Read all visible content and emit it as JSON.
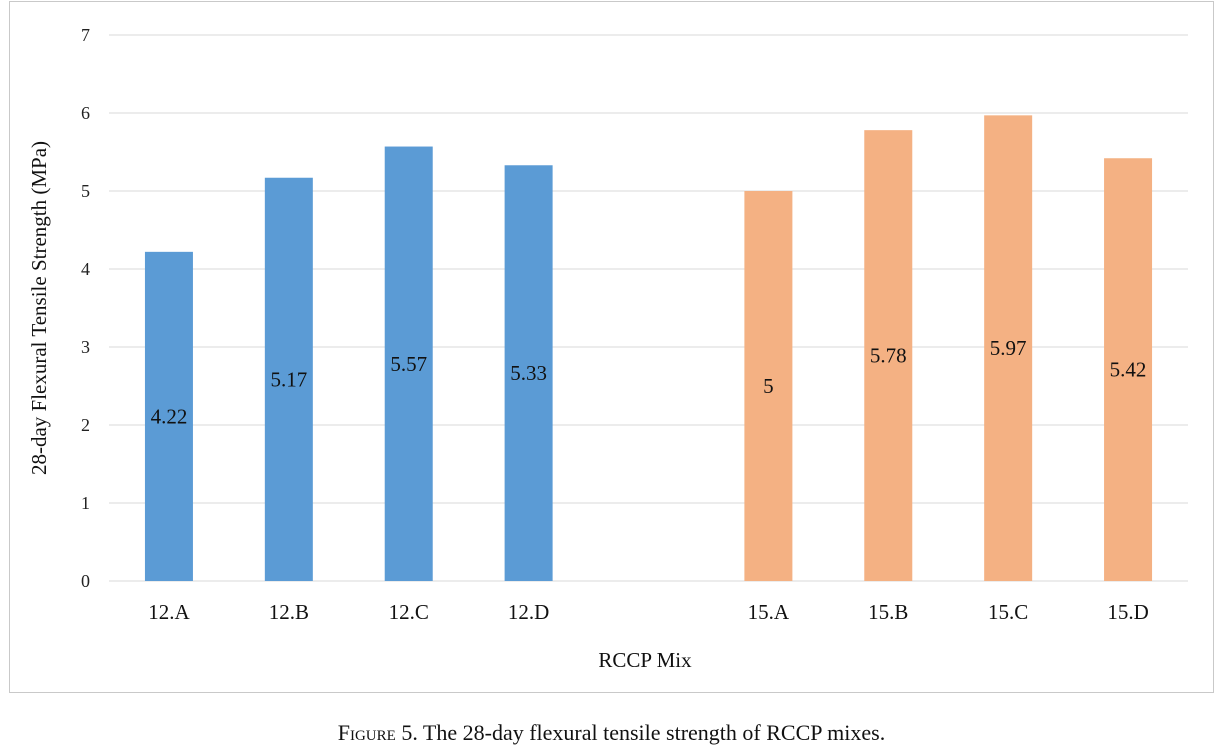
{
  "chart_data": {
    "type": "bar",
    "categories": [
      "12.A",
      "12.B",
      "12.C",
      "12.D",
      "",
      "15.A",
      "15.B",
      "15.C",
      "15.D"
    ],
    "series": [
      {
        "values": [
          4.22,
          5.17,
          5.57,
          5.33,
          null,
          null,
          null,
          null,
          null
        ],
        "labels": [
          "4.22",
          "5.17",
          "5.57",
          "5.33",
          "",
          "",
          "",
          "",
          ""
        ],
        "color": "#5b9bd5"
      },
      {
        "values": [
          null,
          null,
          null,
          null,
          null,
          5,
          5.78,
          5.97,
          5.42
        ],
        "labels": [
          "",
          "",
          "",
          "",
          "",
          "5",
          "5.78",
          "5.97",
          "5.42"
        ],
        "color": "#f4b183"
      }
    ],
    "xlabel": "RCCP Mix",
    "ylabel": "28-day Flexural Tensile Strength (MPa)",
    "ylim": [
      0,
      7
    ],
    "yticks": [
      0,
      1,
      2,
      3,
      4,
      5,
      6,
      7
    ],
    "grid": true,
    "gridline_color": "#d9d9d9"
  },
  "caption": {
    "prefix": "Figure",
    "text": " 5. The 28-day flexural tensile strength of RCCP mixes."
  }
}
